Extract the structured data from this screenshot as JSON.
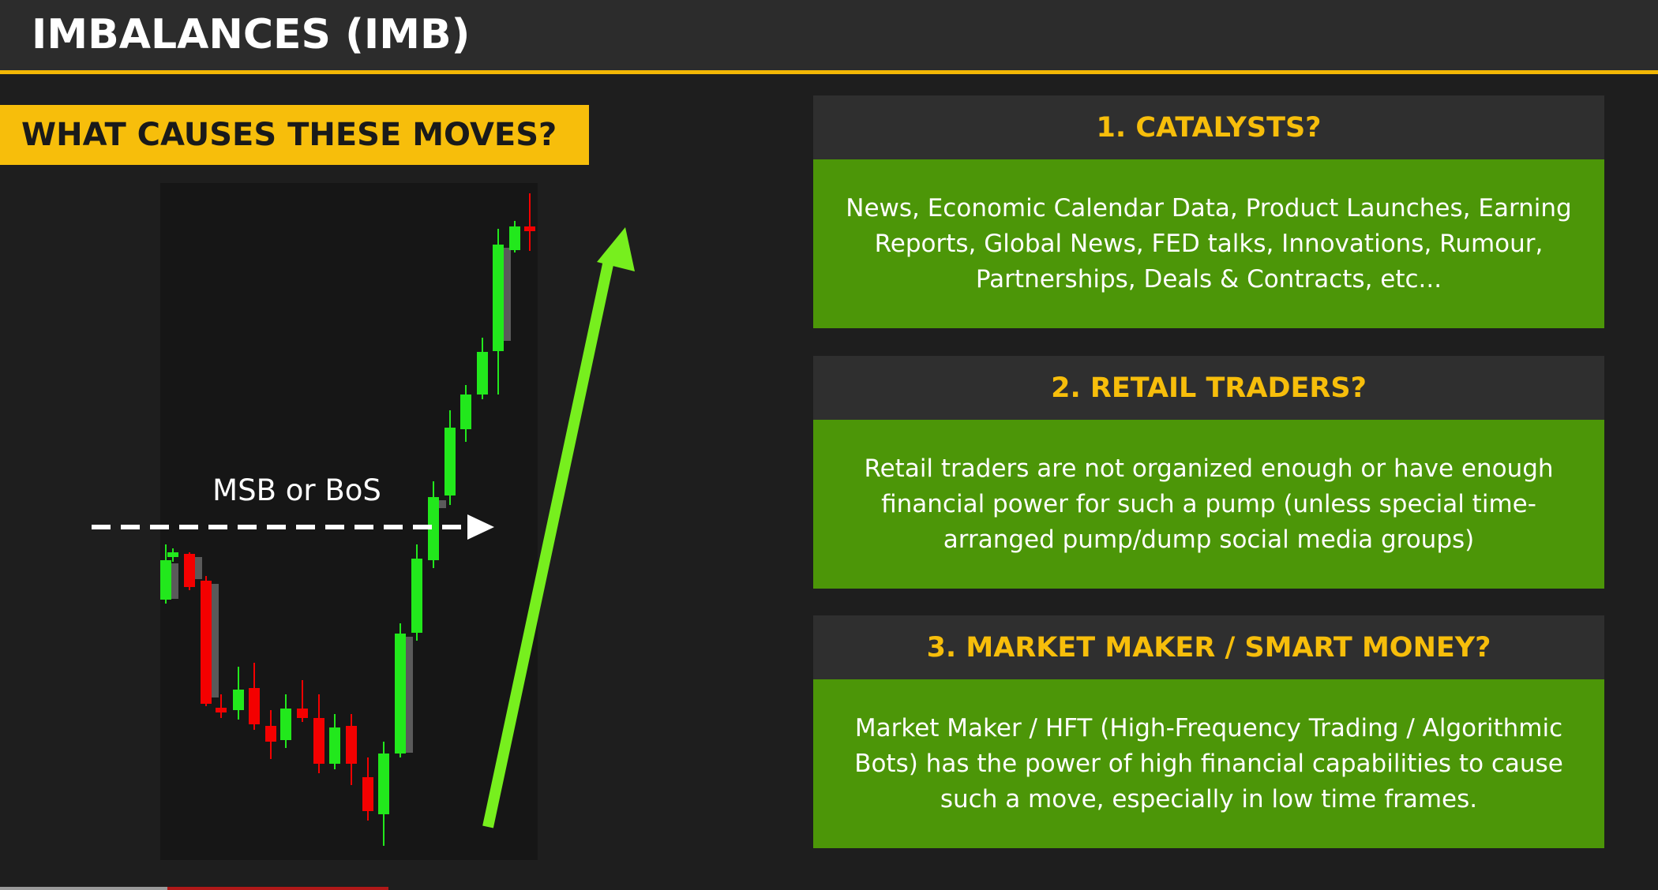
{
  "title": "IMBALANCES (IMB)",
  "subtitle": "WHAT CAUSES THESE MOVES?",
  "diagram": {
    "break_label": "MSB or BoS",
    "candle_colors": {
      "bull": "#22e81c",
      "bear": "#f40000",
      "shadow": "#5a5a5a"
    },
    "arrow_color": "#77ef1e"
  },
  "boxes": [
    {
      "heading": "1. CATALYSTS?",
      "text": "News, Economic Calendar Data, Product Launches, Earning Reports, Global News, FED talks, Innovations, Rumour, Partnerships, Deals & Contracts, etc..."
    },
    {
      "heading": "2. RETAIL TRADERS?",
      "text": "Retail traders are not organized enough or have enough financial power for such a pump (unless special time-arranged pump/dump social media groups)"
    },
    {
      "heading": "3. MARKET MAKER / SMART MONEY?",
      "text": "Market Maker / HFT (High-Frequency Trading / Algorithmic Bots) has the power of high financial capabilities to cause such a move, especially in low time frames."
    }
  ],
  "colors": {
    "accent": "#f7be0b",
    "box_body": "#4c9608",
    "box_head": "#2f2f2f"
  }
}
